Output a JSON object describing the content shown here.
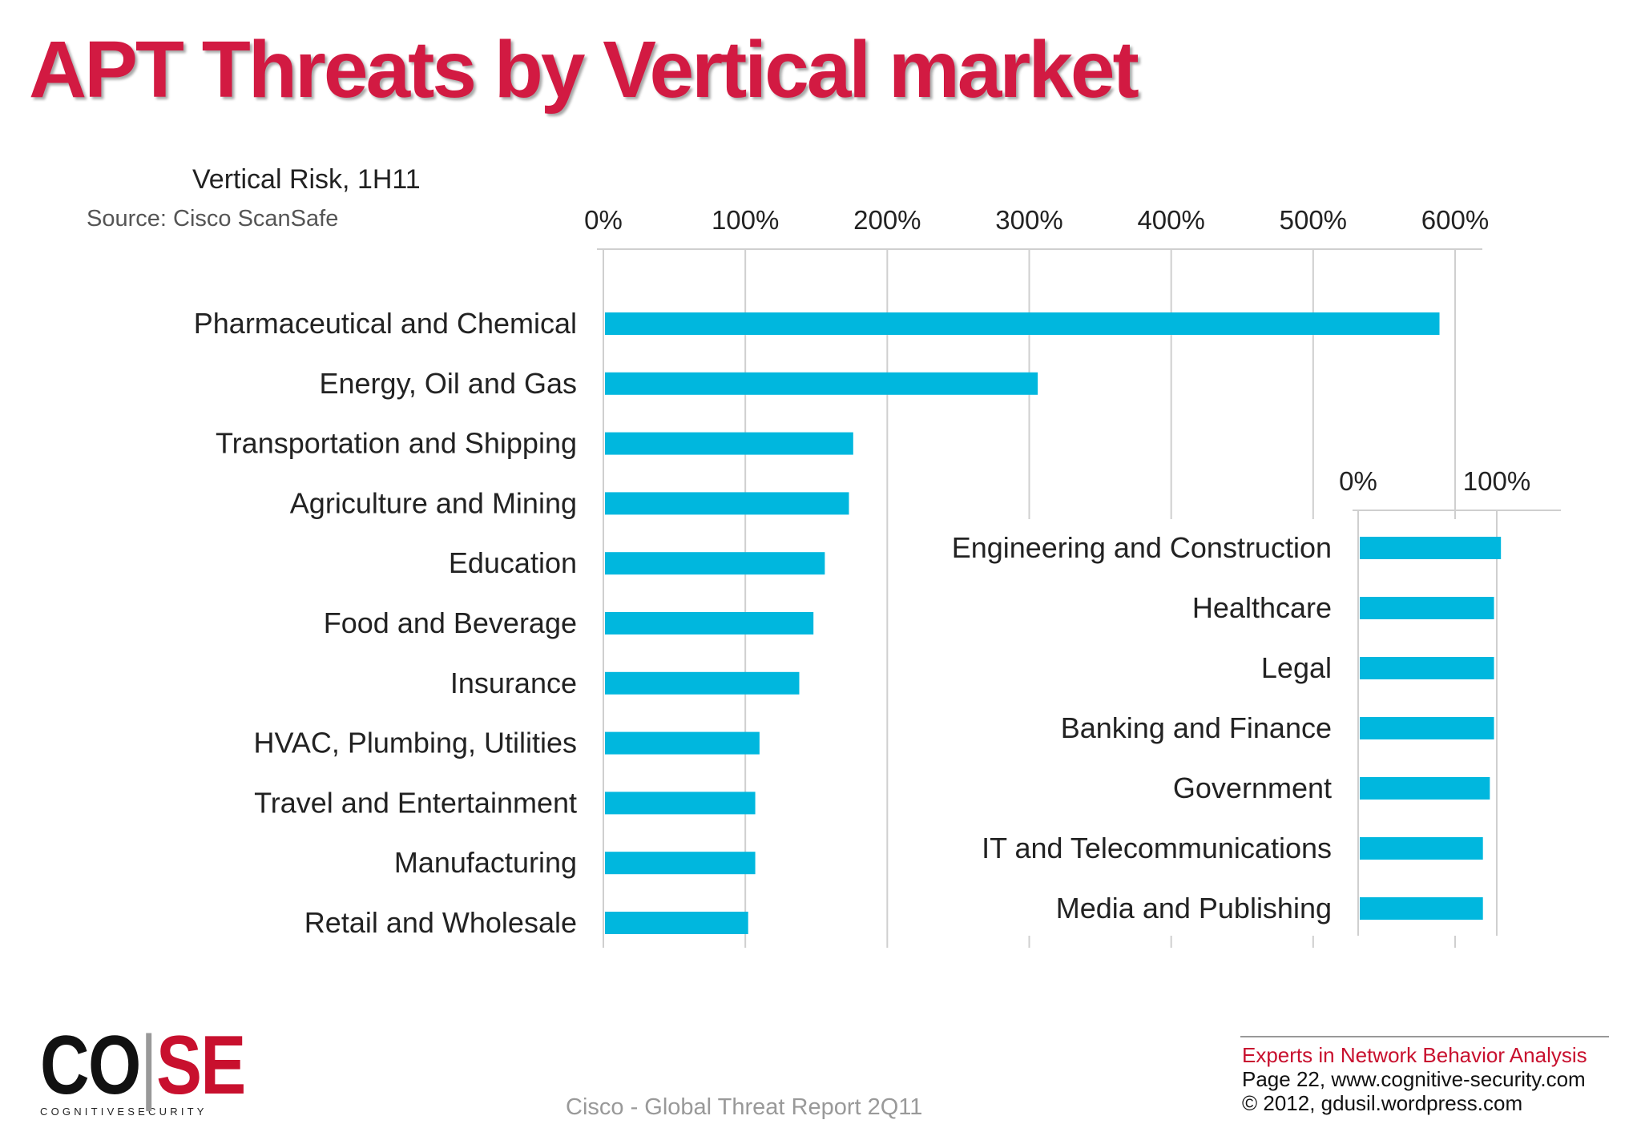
{
  "slide": {
    "title": "APT Threats by Vertical market",
    "footer_source": "Cisco - Global Threat Report 2Q11",
    "logo": {
      "mark_left": "CO",
      "mark_sep": "|",
      "mark_right": "SE",
      "subtitle": "COGNITIVESECURITY"
    },
    "footer": {
      "tagline": "Experts in Network Behavior Analysis",
      "page_line": "Page 22, www.cognitive-security.com",
      "copyright_line": "© 2012, gdusil.wordpress.com"
    }
  },
  "colors": {
    "title": "#d21a42",
    "bar": "#00b7de",
    "grid": "#cfcfcf",
    "brand_red": "#c8102e"
  },
  "chart_data": [
    {
      "type": "bar",
      "orientation": "horizontal",
      "title": "Vertical Risk, 1H11",
      "subtitle": "Source: Cisco ScanSafe",
      "xlim": [
        0,
        600
      ],
      "ticks": [
        0,
        100,
        200,
        300,
        400,
        500,
        600
      ],
      "tick_labels": [
        "0%",
        "100%",
        "200%",
        "300%",
        "400%",
        "500%",
        "600%"
      ],
      "grid": true,
      "categories": [
        "Pharmaceutical and Chemical",
        "Energy, Oil and Gas",
        "Transportation and Shipping",
        "Agriculture and Mining",
        "Education",
        "Food and Beverage",
        "Insurance",
        "HVAC, Plumbing, Utilities",
        "Travel and Entertainment",
        "Manufacturing",
        "Retail and Wholesale"
      ],
      "values": [
        589,
        306,
        176,
        173,
        156,
        148,
        138,
        110,
        107,
        107,
        102
      ]
    },
    {
      "type": "bar",
      "orientation": "horizontal",
      "xlim": [
        0,
        100
      ],
      "ticks": [
        0,
        100
      ],
      "tick_labels": [
        "0%",
        "100%"
      ],
      "grid": true,
      "categories": [
        "Engineering and Construction",
        "Healthcare",
        "Legal",
        "Banking and Finance",
        "Government",
        "IT and Telecommunications",
        "Media and Publishing"
      ],
      "values": [
        103,
        98,
        98,
        98,
        95,
        90,
        90
      ]
    }
  ]
}
